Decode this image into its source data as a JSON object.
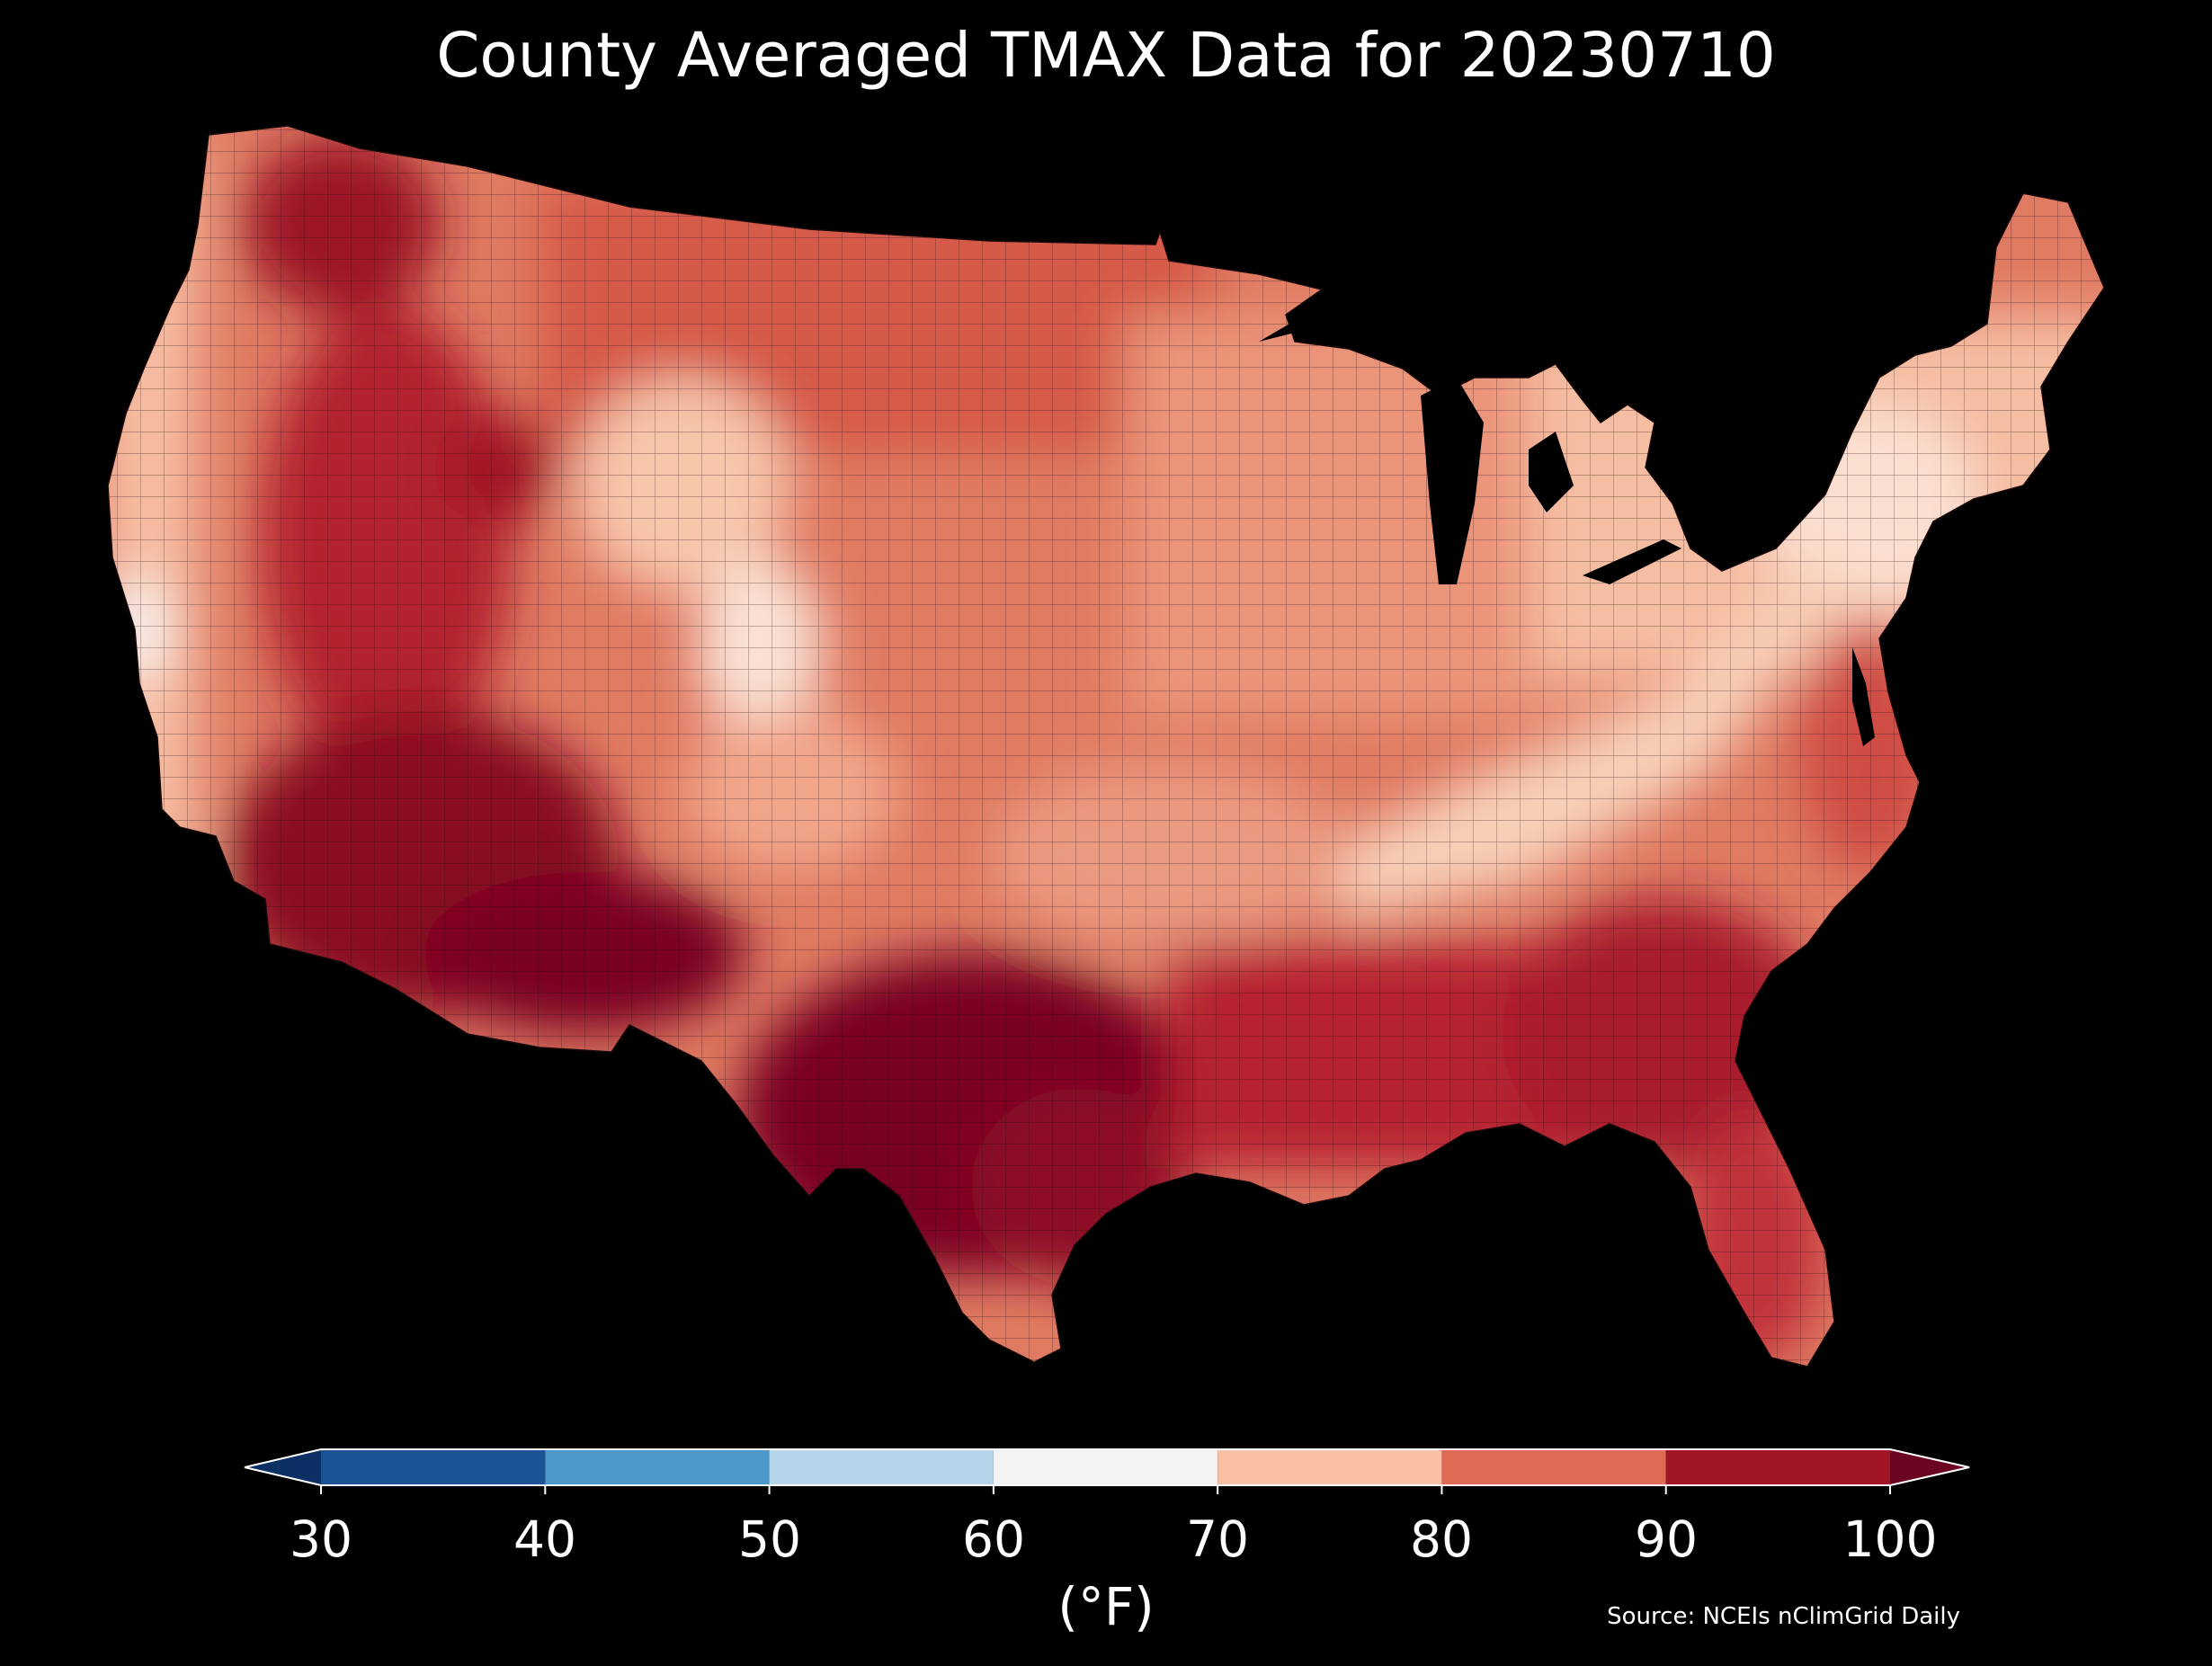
{
  "title": "County Averaged TMAX Data for 20230710",
  "colorbar": {
    "unit_label": "(°F)",
    "ticks": [
      "30",
      "40",
      "50",
      "60",
      "70",
      "80",
      "90",
      "100"
    ],
    "bins": [
      {
        "range": [
          30,
          40
        ],
        "color": "#1a5494"
      },
      {
        "range": [
          40,
          50
        ],
        "color": "#4c98c8"
      },
      {
        "range": [
          50,
          60
        ],
        "color": "#b5d6ea"
      },
      {
        "range": [
          60,
          70
        ],
        "color": "#f3f3f3"
      },
      {
        "range": [
          70,
          80
        ],
        "color": "#f9c0a3"
      },
      {
        "range": [
          80,
          90
        ],
        "color": "#de6b56"
      },
      {
        "range": [
          90,
          100
        ],
        "color": "#a11527"
      }
    ],
    "under_color": "#0b3064",
    "over_color": "#6b0420",
    "extend": "both"
  },
  "source": "Source: NCEIs nClimGrid Daily",
  "map": {
    "region": "Contiguous United States",
    "variable": "TMAX",
    "date": "20230710",
    "background_color": "#000000",
    "county_border_color": "#1a0a0a"
  }
}
